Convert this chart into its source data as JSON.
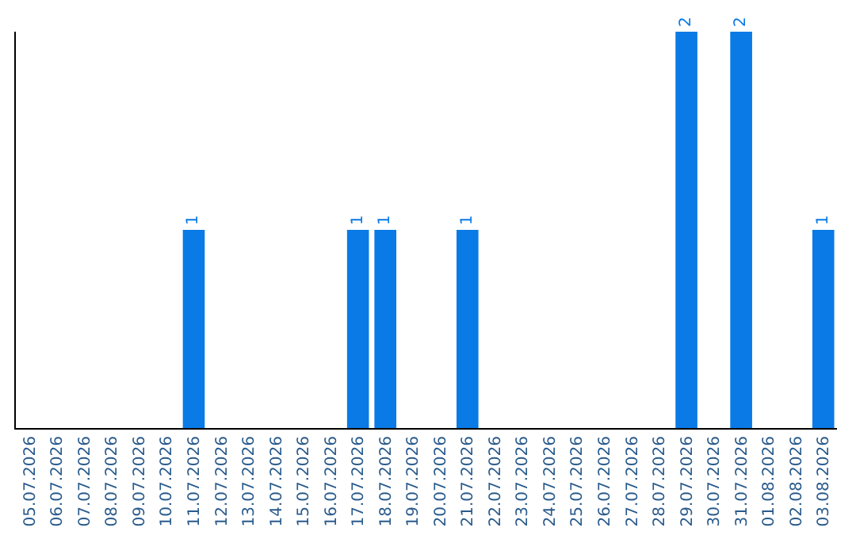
{
  "chart_data": {
    "type": "bar",
    "categories": [
      "05.07.2026",
      "06.07.2026",
      "07.07.2026",
      "08.07.2026",
      "09.07.2026",
      "10.07.2026",
      "11.07.2026",
      "12.07.2026",
      "13.07.2026",
      "14.07.2026",
      "15.07.2026",
      "16.07.2026",
      "17.07.2026",
      "18.07.2026",
      "19.07.2026",
      "20.07.2026",
      "21.07.2026",
      "22.07.2026",
      "23.07.2026",
      "24.07.2026",
      "25.07.2026",
      "26.07.2026",
      "27.07.2026",
      "28.07.2026",
      "29.07.2026",
      "30.07.2026",
      "31.07.2026",
      "01.08.2026",
      "02.08.2026",
      "03.08.2026"
    ],
    "values": [
      0,
      0,
      0,
      0,
      0,
      0,
      1,
      0,
      0,
      0,
      0,
      0,
      1,
      1,
      0,
      0,
      1,
      0,
      0,
      0,
      0,
      0,
      0,
      0,
      2,
      0,
      2,
      0,
      0,
      1
    ],
    "value_labels": [
      null,
      null,
      null,
      null,
      null,
      null,
      "1",
      null,
      null,
      null,
      null,
      null,
      "1",
      "1",
      null,
      null,
      "1",
      null,
      null,
      null,
      null,
      null,
      null,
      null,
      "2",
      null,
      "2",
      null,
      null,
      "1"
    ],
    "color": "#0a7ae6",
    "grid": false,
    "legend": false
  }
}
